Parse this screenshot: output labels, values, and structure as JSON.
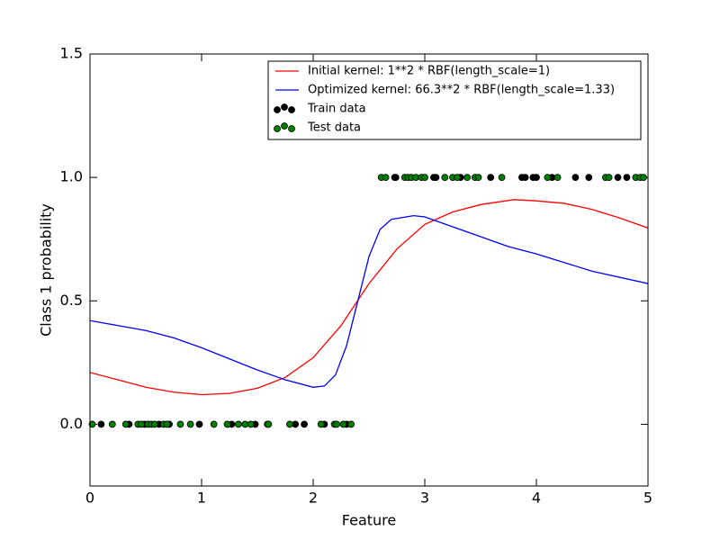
{
  "chart_data": {
    "type": "line",
    "xlabel": "Feature",
    "ylabel": "Class 1 probability",
    "xlim": [
      0,
      5
    ],
    "ylim": [
      -0.25,
      1.5
    ],
    "xticks": [
      0,
      1,
      2,
      3,
      4,
      5
    ],
    "yticks": [
      {
        "value": 0,
        "label": "0.0"
      },
      0.5,
      {
        "value": 1,
        "label": "1.0"
      },
      1.5
    ],
    "legend": "upper right",
    "series": [
      {
        "name": "Initial kernel: 1**2 * RBF(length_scale=1)",
        "type": "line",
        "color": "#ff0000",
        "x": [
          0,
          0.25,
          0.5,
          0.75,
          1.0,
          1.25,
          1.5,
          1.75,
          2.0,
          2.25,
          2.5,
          2.75,
          3.0,
          3.25,
          3.5,
          3.8,
          4.0,
          4.25,
          4.5,
          4.75,
          5.0
        ],
        "values": [
          0.21,
          0.18,
          0.15,
          0.13,
          0.12,
          0.125,
          0.146,
          0.19,
          0.27,
          0.4,
          0.57,
          0.71,
          0.81,
          0.86,
          0.89,
          0.91,
          0.905,
          0.895,
          0.87,
          0.835,
          0.795
        ]
      },
      {
        "name": "Optimized kernel: 66.3**2 * RBF(length_scale=1.33)",
        "type": "line",
        "color": "#0000ff",
        "x": [
          0,
          0.25,
          0.5,
          0.75,
          1.0,
          1.25,
          1.5,
          1.75,
          2.0,
          2.1,
          2.2,
          2.3,
          2.4,
          2.5,
          2.6,
          2.7,
          2.9,
          3.0,
          3.25,
          3.5,
          3.75,
          4.0,
          4.5,
          5.0
        ],
        "values": [
          0.42,
          0.4,
          0.38,
          0.35,
          0.31,
          0.265,
          0.22,
          0.18,
          0.15,
          0.155,
          0.2,
          0.32,
          0.5,
          0.68,
          0.79,
          0.83,
          0.845,
          0.84,
          0.8,
          0.76,
          0.72,
          0.69,
          0.62,
          0.57
        ]
      },
      {
        "name": "Train data",
        "type": "scatter",
        "color": "#000000",
        "x": [
          0.1,
          0.35,
          0.49,
          0.62,
          0.71,
          0.98,
          1.27,
          1.48,
          1.84,
          1.92,
          2.1,
          2.3,
          2.73,
          2.74,
          3.08,
          3.1,
          3.32,
          3.59,
          3.87,
          3.9,
          3.97,
          4.0,
          4.14,
          4.35,
          4.47,
          4.73,
          4.81
        ],
        "values": [
          0,
          0,
          0,
          0,
          0,
          0,
          0,
          0,
          0,
          0,
          0,
          0,
          1,
          1,
          1,
          1,
          1,
          1,
          1,
          1,
          1,
          1,
          1,
          1,
          1,
          1,
          1
        ]
      },
      {
        "name": "Test data",
        "type": "scatter",
        "color": "#008000",
        "x": [
          0.02,
          0.2,
          0.32,
          0.43,
          0.46,
          0.52,
          0.55,
          0.58,
          0.66,
          0.69,
          0.81,
          0.9,
          1.11,
          1.23,
          1.33,
          1.39,
          1.44,
          1.59,
          1.6,
          1.79,
          2.07,
          2.19,
          2.21,
          2.27,
          2.34,
          2.61,
          2.65,
          2.82,
          2.85,
          2.88,
          2.92,
          2.97,
          3.0,
          3.18,
          3.25,
          3.29,
          3.38,
          3.45,
          3.48,
          3.69,
          4.1,
          4.19,
          4.62,
          4.65,
          4.89,
          4.93,
          4.96
        ],
        "values": [
          0,
          0,
          0,
          0,
          0,
          0,
          0,
          0,
          0,
          0,
          0,
          0,
          0,
          0,
          0,
          0,
          0,
          0,
          0,
          0,
          0,
          0,
          0,
          0,
          0,
          1,
          1,
          1,
          1,
          1,
          1,
          1,
          1,
          1,
          1,
          1,
          1,
          1,
          1,
          1,
          1,
          1,
          1,
          1,
          1,
          1,
          1
        ]
      }
    ]
  }
}
